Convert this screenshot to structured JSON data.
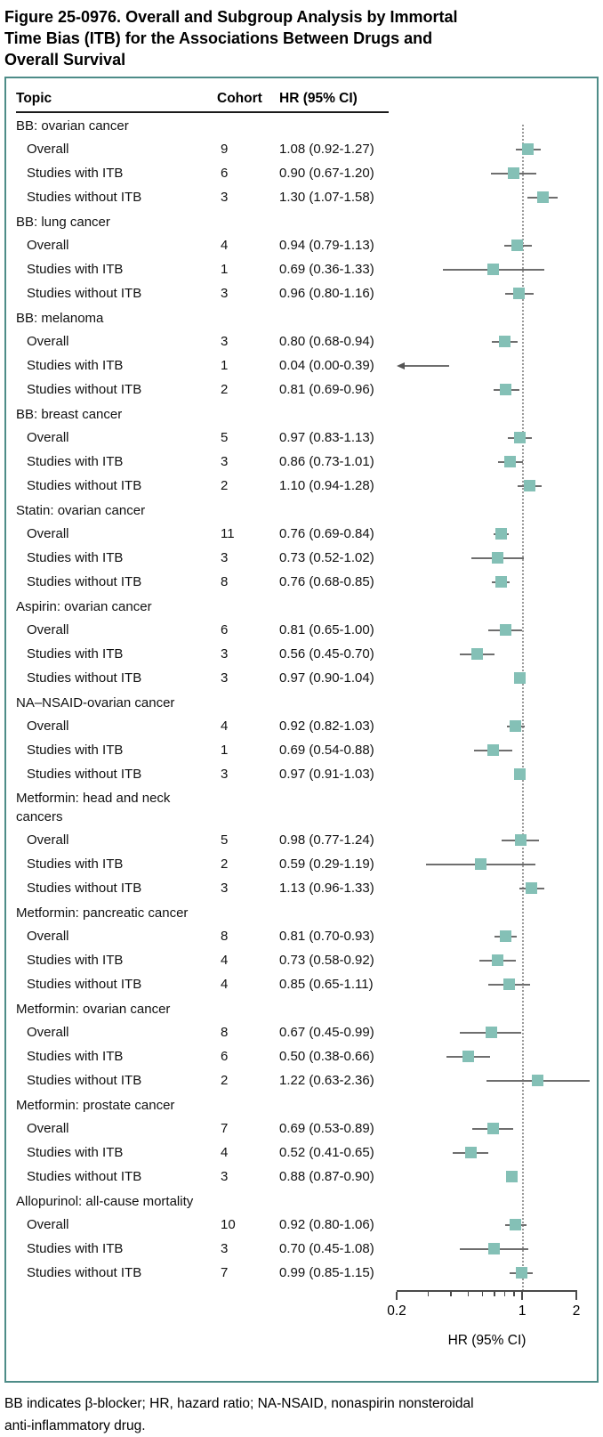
{
  "figure": {
    "title": "Figure 25-0976. Overall and Subgroup Analysis by Immortal Time Bias (ITB) for the Associations Between Drugs and Overall Survival",
    "title_lines": [
      "Figure 25-0976. Overall and Subgroup Analysis by Immortal",
      "Time Bias (ITB) for the Associations Between Drugs and",
      "Overall Survival"
    ],
    "footnote": "BB indicates β-blocker; HR, hazard ratio; NA-NSAID, nonaspirin nonsteroidal anti-inflammatory drug.",
    "footnote_lines": [
      "BB indicates β-blocker; HR, hazard ratio; NA-NSAID, nonaspirin nonsteroidal",
      "anti-inflammatory drug."
    ],
    "panel_border_color": "#4e8c88"
  },
  "table": {
    "headers": {
      "topic": "Topic",
      "cohort": "Cohort",
      "hr": "HR (95% CI)"
    }
  },
  "chart_data": {
    "type": "forest",
    "xlabel": "HR (95% CI)",
    "x_scale": "log",
    "xlim": [
      0.2,
      2
    ],
    "x_ticks": [
      0.2,
      0.3,
      0.4,
      0.5,
      0.6,
      0.7,
      0.8,
      0.9,
      1,
      2
    ],
    "x_major_ticks": [
      0.2,
      1,
      2
    ],
    "x_major_tick_labels": [
      {
        "value": 0.2,
        "label": "0.2"
      },
      {
        "value": 1,
        "label": "1"
      },
      {
        "value": 2,
        "label": "2"
      }
    ],
    "reference_line": 1,
    "marker_color": "#84c0b6",
    "ci_color": "#6e6e6e",
    "sections": [
      {
        "topic": "BB: ovarian cancer",
        "rows": [
          {
            "label": "Overall",
            "cohort": "9",
            "hr": 1.08,
            "lo": 0.92,
            "hi": 1.27,
            "text": "1.08 (0.92-1.27)"
          },
          {
            "label": "Studies with ITB",
            "cohort": "6",
            "hr": 0.9,
            "lo": 0.67,
            "hi": 1.2,
            "text": "0.90 (0.67-1.20)"
          },
          {
            "label": "Studies without ITB",
            "cohort": "3",
            "hr": 1.3,
            "lo": 1.07,
            "hi": 1.58,
            "text": "1.30 (1.07-1.58)"
          }
        ]
      },
      {
        "topic": "BB: lung cancer",
        "rows": [
          {
            "label": "Overall",
            "cohort": "4",
            "hr": 0.94,
            "lo": 0.79,
            "hi": 1.13,
            "text": "0.94 (0.79-1.13)"
          },
          {
            "label": "Studies with ITB",
            "cohort": "1",
            "hr": 0.69,
            "lo": 0.36,
            "hi": 1.33,
            "text": "0.69 (0.36-1.33)"
          },
          {
            "label": "Studies without ITB",
            "cohort": "3",
            "hr": 0.96,
            "lo": 0.8,
            "hi": 1.16,
            "text": "0.96 (0.80-1.16)"
          }
        ]
      },
      {
        "topic": "BB: melanoma",
        "rows": [
          {
            "label": "Overall",
            "cohort": "3",
            "hr": 0.8,
            "lo": 0.68,
            "hi": 0.94,
            "text": "0.80 (0.68-0.94)"
          },
          {
            "label": "Studies with ITB",
            "cohort": "1",
            "hr": 0.04,
            "lo": 0.0,
            "hi": 0.39,
            "text": "0.04 (0.00-0.39)",
            "offscale_left": true
          },
          {
            "label": "Studies without ITB",
            "cohort": "2",
            "hr": 0.81,
            "lo": 0.69,
            "hi": 0.96,
            "text": "0.81 (0.69-0.96)"
          }
        ]
      },
      {
        "topic": "BB: breast cancer",
        "rows": [
          {
            "label": "Overall",
            "cohort": "5",
            "hr": 0.97,
            "lo": 0.83,
            "hi": 1.13,
            "text": "0.97 (0.83-1.13)"
          },
          {
            "label": "Studies with ITB",
            "cohort": "3",
            "hr": 0.86,
            "lo": 0.73,
            "hi": 1.01,
            "text": "0.86 (0.73-1.01)"
          },
          {
            "label": "Studies without ITB",
            "cohort": "2",
            "hr": 1.1,
            "lo": 0.94,
            "hi": 1.28,
            "text": "1.10 (0.94-1.28)"
          }
        ]
      },
      {
        "topic": "Statin: ovarian cancer",
        "rows": [
          {
            "label": "Overall",
            "cohort": "11",
            "hr": 0.76,
            "lo": 0.69,
            "hi": 0.84,
            "text": "0.76 (0.69-0.84)"
          },
          {
            "label": "Studies with ITB",
            "cohort": "3",
            "hr": 0.73,
            "lo": 0.52,
            "hi": 1.02,
            "text": "0.73 (0.52-1.02)"
          },
          {
            "label": "Studies without ITB",
            "cohort": "8",
            "hr": 0.76,
            "lo": 0.68,
            "hi": 0.85,
            "text": "0.76 (0.68-0.85)"
          }
        ]
      },
      {
        "topic": "Aspirin: ovarian cancer",
        "rows": [
          {
            "label": "Overall",
            "cohort": "6",
            "hr": 0.81,
            "lo": 0.65,
            "hi": 1.0,
            "text": "0.81 (0.65-1.00)"
          },
          {
            "label": "Studies with ITB",
            "cohort": "3",
            "hr": 0.56,
            "lo": 0.45,
            "hi": 0.7,
            "text": "0.56 (0.45-0.70)"
          },
          {
            "label": "Studies without ITB",
            "cohort": "3",
            "hr": 0.97,
            "lo": 0.9,
            "hi": 1.04,
            "text": "0.97 (0.90-1.04)"
          }
        ]
      },
      {
        "topic": "NA–NSAID-ovarian cancer",
        "rows": [
          {
            "label": "Overall",
            "cohort": "4",
            "hr": 0.92,
            "lo": 0.82,
            "hi": 1.03,
            "text": "0.92 (0.82-1.03)"
          },
          {
            "label": "Studies with ITB",
            "cohort": "1",
            "hr": 0.69,
            "lo": 0.54,
            "hi": 0.88,
            "text": "0.69 (0.54-0.88)"
          },
          {
            "label": "Studies without ITB",
            "cohort": "3",
            "hr": 0.97,
            "lo": 0.91,
            "hi": 1.03,
            "text": "0.97 (0.91-1.03)"
          }
        ]
      },
      {
        "topic": "Metformin: head and neck cancers",
        "rows": [
          {
            "label": "Overall",
            "cohort": "5",
            "hr": 0.98,
            "lo": 0.77,
            "hi": 1.24,
            "text": "0.98 (0.77-1.24)"
          },
          {
            "label": "Studies with ITB",
            "cohort": "2",
            "hr": 0.59,
            "lo": 0.29,
            "hi": 1.19,
            "text": "0.59 (0.29-1.19)"
          },
          {
            "label": "Studies without ITB",
            "cohort": "3",
            "hr": 1.13,
            "lo": 0.96,
            "hi": 1.33,
            "text": "1.13 (0.96-1.33)"
          }
        ]
      },
      {
        "topic": "Metformin: pancreatic cancer",
        "rows": [
          {
            "label": "Overall",
            "cohort": "8",
            "hr": 0.81,
            "lo": 0.7,
            "hi": 0.93,
            "text": "0.81 (0.70-0.93)"
          },
          {
            "label": "Studies with ITB",
            "cohort": "4",
            "hr": 0.73,
            "lo": 0.58,
            "hi": 0.92,
            "text": "0.73 (0.58-0.92)"
          },
          {
            "label": "Studies without ITB",
            "cohort": "4",
            "hr": 0.85,
            "lo": 0.65,
            "hi": 1.11,
            "text": "0.85 (0.65-1.11)"
          }
        ]
      },
      {
        "topic": "Metformin: ovarian cancer",
        "rows": [
          {
            "label": "Overall",
            "cohort": "8",
            "hr": 0.67,
            "lo": 0.45,
            "hi": 0.99,
            "text": "0.67 (0.45-0.99)"
          },
          {
            "label": "Studies with ITB",
            "cohort": "6",
            "hr": 0.5,
            "lo": 0.38,
            "hi": 0.66,
            "text": "0.50 (0.38-0.66)"
          },
          {
            "label": "Studies without ITB",
            "cohort": "2",
            "hr": 1.22,
            "lo": 0.63,
            "hi": 2.36,
            "text": "1.22 (0.63-2.36)"
          }
        ]
      },
      {
        "topic": "Metformin: prostate cancer",
        "rows": [
          {
            "label": "Overall",
            "cohort": "7",
            "hr": 0.69,
            "lo": 0.53,
            "hi": 0.89,
            "text": "0.69 (0.53-0.89)"
          },
          {
            "label": "Studies with ITB",
            "cohort": "4",
            "hr": 0.52,
            "lo": 0.41,
            "hi": 0.65,
            "text": "0.52 (0.41-0.65)"
          },
          {
            "label": "Studies without ITB",
            "cohort": "3",
            "hr": 0.88,
            "lo": 0.87,
            "hi": 0.9,
            "text": "0.88 (0.87-0.90)"
          }
        ]
      },
      {
        "topic": "Allopurinol: all-cause mortality",
        "rows": [
          {
            "label": "Overall",
            "cohort": "10",
            "hr": 0.92,
            "lo": 0.8,
            "hi": 1.06,
            "text": "0.92 (0.80-1.06)"
          },
          {
            "label": "Studies with ITB",
            "cohort": "3",
            "hr": 0.7,
            "lo": 0.45,
            "hi": 1.08,
            "text": "0.70 (0.45-1.08)"
          },
          {
            "label": "Studies without ITB",
            "cohort": "7",
            "hr": 0.99,
            "lo": 0.85,
            "hi": 1.15,
            "text": "0.99 (0.85-1.15)"
          }
        ]
      }
    ]
  }
}
